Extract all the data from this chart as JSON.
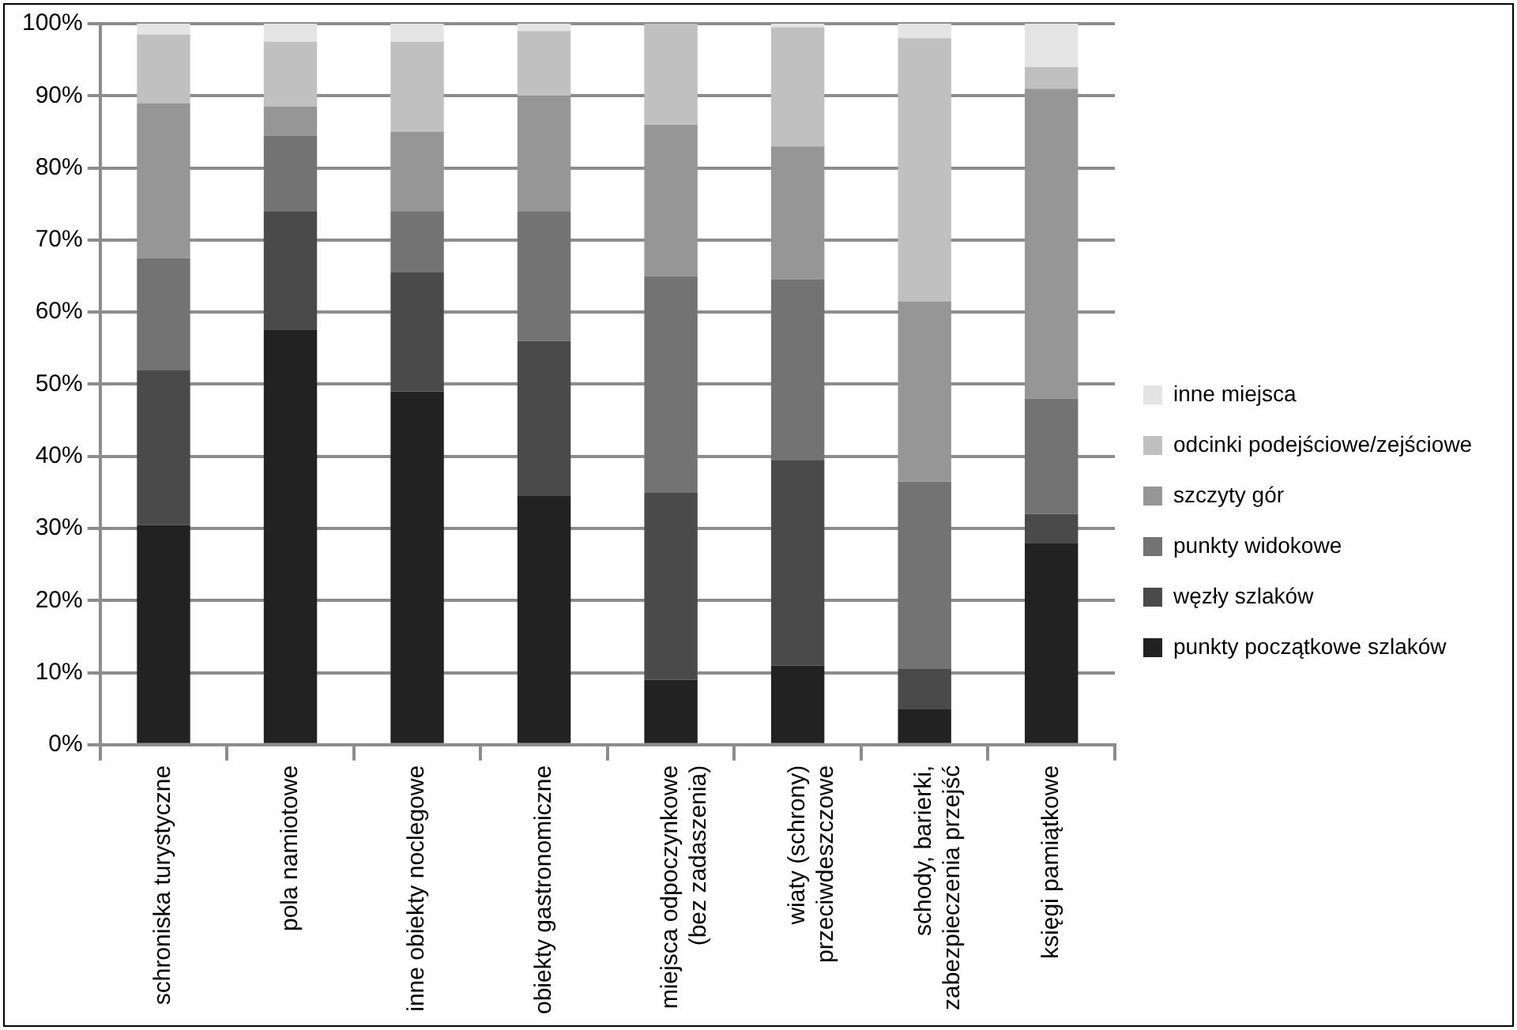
{
  "chart_data": {
    "type": "bar",
    "stacked": true,
    "grid": "y",
    "legend": "right",
    "categories": [
      "schroniska turystyczne",
      "pola namiotowe",
      "inne obiekty noclegowe",
      "obiekty gastronomiczne",
      "miejsca odpoczynkowe\n(bez zadaszenia)",
      "wiaty (schrony)\nprzeciwdeszczowe",
      "schody, barierki,\nzabezpieczenia przejść",
      "księgi pamiątkowe"
    ],
    "ylim": [
      0,
      100
    ],
    "yticks": [
      {
        "value": 0,
        "label": "0%"
      },
      {
        "value": 10,
        "label": "10%"
      },
      {
        "value": 20,
        "label": "20%"
      },
      {
        "value": 30,
        "label": "30%"
      },
      {
        "value": 40,
        "label": "40%"
      },
      {
        "value": 50,
        "label": "50%"
      },
      {
        "value": 60,
        "label": "60%"
      },
      {
        "value": 70,
        "label": "70%"
      },
      {
        "value": 80,
        "label": "80%"
      },
      {
        "value": 90,
        "label": "90%"
      },
      {
        "value": 100,
        "label": "100%"
      }
    ],
    "series": [
      {
        "name": "punkty początkowe szlaków",
        "color": "#222222",
        "values": [
          30.5,
          57.5,
          49,
          34.5,
          9,
          11,
          5,
          28
        ]
      },
      {
        "name": "węzły szlaków",
        "color": "#4a4a4a",
        "values": [
          21.5,
          16.5,
          16.5,
          21.5,
          26,
          28.5,
          5.5,
          4
        ]
      },
      {
        "name": "punkty widokowe",
        "color": "#737373",
        "values": [
          15.5,
          10.5,
          8.5,
          18,
          30,
          25,
          26,
          16
        ]
      },
      {
        "name": "szczyty gór",
        "color": "#969696",
        "values": [
          21.5,
          4,
          11,
          16,
          21,
          18.5,
          25,
          43
        ]
      },
      {
        "name": "odcinki podejściowe/zejściowe",
        "color": "#c0c0c0",
        "values": [
          9.5,
          9,
          12.5,
          9,
          14,
          16.5,
          36.5,
          3
        ]
      },
      {
        "name": "inne miejsca",
        "color": "#e4e4e4",
        "values": [
          1.5,
          2.5,
          2.5,
          1,
          0,
          0.5,
          2,
          6
        ]
      }
    ]
  }
}
